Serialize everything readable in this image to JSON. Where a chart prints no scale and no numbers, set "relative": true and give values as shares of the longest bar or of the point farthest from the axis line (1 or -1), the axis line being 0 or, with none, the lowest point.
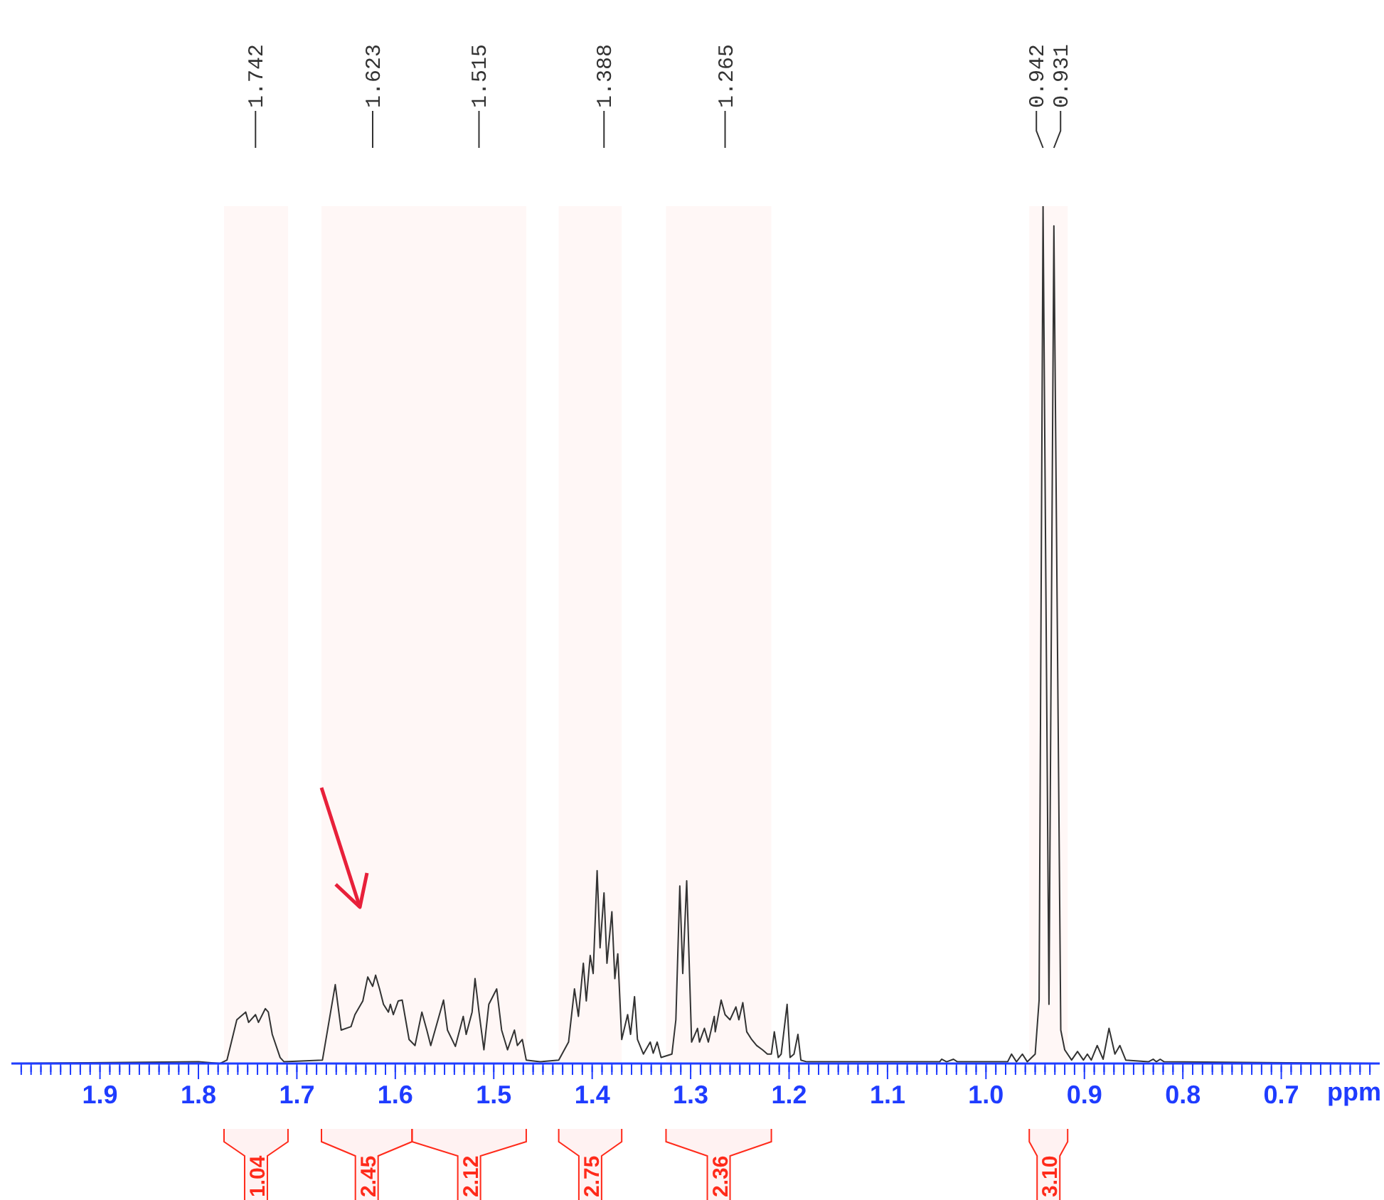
{
  "chart_data": {
    "type": "line",
    "relative": true,
    "xlabel": "ppm",
    "xlim": [
      1.99,
      0.6
    ],
    "xticks": [
      {
        "value": 1.98,
        "label": null
      },
      {
        "value": 1.97,
        "label": null
      },
      {
        "value": 1.96,
        "label": null
      },
      {
        "value": 1.95,
        "label": null
      },
      {
        "value": 1.94,
        "label": null
      },
      {
        "value": 1.93,
        "label": null
      },
      {
        "value": 1.92,
        "label": null
      },
      {
        "value": 1.91,
        "label": null
      },
      1.9,
      {
        "value": 1.89,
        "label": null
      },
      {
        "value": 1.88,
        "label": null
      },
      {
        "value": 1.87,
        "label": null
      },
      {
        "value": 1.86,
        "label": null
      },
      {
        "value": 1.85,
        "label": null
      },
      {
        "value": 1.84,
        "label": null
      },
      {
        "value": 1.83,
        "label": null
      },
      {
        "value": 1.82,
        "label": null
      },
      {
        "value": 1.81,
        "label": null
      },
      1.8,
      {
        "value": 1.79,
        "label": null
      },
      {
        "value": 1.78,
        "label": null
      },
      {
        "value": 1.77,
        "label": null
      },
      {
        "value": 1.76,
        "label": null
      },
      {
        "value": 1.75,
        "label": null
      },
      {
        "value": 1.74,
        "label": null
      },
      {
        "value": 1.73,
        "label": null
      },
      {
        "value": 1.72,
        "label": null
      },
      {
        "value": 1.71,
        "label": null
      },
      1.7,
      {
        "value": 1.69,
        "label": null
      },
      {
        "value": 1.68,
        "label": null
      },
      {
        "value": 1.67,
        "label": null
      },
      {
        "value": 1.66,
        "label": null
      },
      {
        "value": 1.65,
        "label": null
      },
      {
        "value": 1.64,
        "label": null
      },
      {
        "value": 1.63,
        "label": null
      },
      {
        "value": 1.62,
        "label": null
      },
      {
        "value": 1.61,
        "label": null
      },
      1.6,
      {
        "value": 1.59,
        "label": null
      },
      {
        "value": 1.58,
        "label": null
      },
      {
        "value": 1.57,
        "label": null
      },
      {
        "value": 1.56,
        "label": null
      },
      {
        "value": 1.55,
        "label": null
      },
      {
        "value": 1.54,
        "label": null
      },
      {
        "value": 1.53,
        "label": null
      },
      {
        "value": 1.52,
        "label": null
      },
      {
        "value": 1.51,
        "label": null
      },
      1.5,
      {
        "value": 1.49,
        "label": null
      },
      {
        "value": 1.48,
        "label": null
      },
      {
        "value": 1.47,
        "label": null
      },
      {
        "value": 1.46,
        "label": null
      },
      {
        "value": 1.45,
        "label": null
      },
      {
        "value": 1.44,
        "label": null
      },
      {
        "value": 1.43,
        "label": null
      },
      {
        "value": 1.42,
        "label": null
      },
      {
        "value": 1.41,
        "label": null
      },
      1.4,
      {
        "value": 1.39,
        "label": null
      },
      {
        "value": 1.38,
        "label": null
      },
      {
        "value": 1.37,
        "label": null
      },
      {
        "value": 1.36,
        "label": null
      },
      {
        "value": 1.35,
        "label": null
      },
      {
        "value": 1.34,
        "label": null
      },
      {
        "value": 1.33,
        "label": null
      },
      {
        "value": 1.32,
        "label": null
      },
      {
        "value": 1.31,
        "label": null
      },
      1.3,
      {
        "value": 1.29,
        "label": null
      },
      {
        "value": 1.28,
        "label": null
      },
      {
        "value": 1.27,
        "label": null
      },
      {
        "value": 1.26,
        "label": null
      },
      {
        "value": 1.25,
        "label": null
      },
      {
        "value": 1.24,
        "label": null
      },
      {
        "value": 1.23,
        "label": null
      },
      {
        "value": 1.22,
        "label": null
      },
      {
        "value": 1.21,
        "label": null
      },
      1.2,
      {
        "value": 1.19,
        "label": null
      },
      {
        "value": 1.18,
        "label": null
      },
      {
        "value": 1.17,
        "label": null
      },
      {
        "value": 1.16,
        "label": null
      },
      {
        "value": 1.15,
        "label": null
      },
      {
        "value": 1.14,
        "label": null
      },
      {
        "value": 1.13,
        "label": null
      },
      {
        "value": 1.12,
        "label": null
      },
      {
        "value": 1.11,
        "label": null
      },
      1.1,
      {
        "value": 1.09,
        "label": null
      },
      {
        "value": 1.08,
        "label": null
      },
      {
        "value": 1.07,
        "label": null
      },
      {
        "value": 1.06,
        "label": null
      },
      {
        "value": 1.05,
        "label": null
      },
      {
        "value": 1.04,
        "label": null
      },
      {
        "value": 1.03,
        "label": null
      },
      {
        "value": 1.02,
        "label": null
      },
      {
        "value": 1.01,
        "label": null
      },
      {
        "value": 1.0,
        "label": "1.0"
      },
      {
        "value": 0.99,
        "label": null
      },
      {
        "value": 0.98,
        "label": null
      },
      {
        "value": 0.97,
        "label": null
      },
      {
        "value": 0.96,
        "label": null
      },
      {
        "value": 0.95,
        "label": null
      },
      {
        "value": 0.94,
        "label": null
      },
      {
        "value": 0.93,
        "label": null
      },
      {
        "value": 0.92,
        "label": null
      },
      {
        "value": 0.91,
        "label": null
      },
      0.9,
      {
        "value": 0.89,
        "label": null
      },
      {
        "value": 0.88,
        "label": null
      },
      {
        "value": 0.87,
        "label": null
      },
      {
        "value": 0.86,
        "label": null
      },
      {
        "value": 0.85,
        "label": null
      },
      {
        "value": 0.84,
        "label": null
      },
      {
        "value": 0.83,
        "label": null
      },
      {
        "value": 0.82,
        "label": null
      },
      {
        "value": 0.81,
        "label": null
      },
      0.8,
      {
        "value": 0.79,
        "label": null
      },
      {
        "value": 0.78,
        "label": null
      },
      {
        "value": 0.77,
        "label": null
      },
      {
        "value": 0.76,
        "label": null
      },
      {
        "value": 0.75,
        "label": null
      },
      {
        "value": 0.74,
        "label": null
      },
      {
        "value": 0.73,
        "label": null
      },
      {
        "value": 0.72,
        "label": null
      },
      {
        "value": 0.71,
        "label": null
      },
      0.7,
      {
        "value": 0.69,
        "label": null
      },
      {
        "value": 0.68,
        "label": null
      },
      {
        "value": 0.67,
        "label": null
      },
      {
        "value": 0.66,
        "label": null
      },
      {
        "value": 0.65,
        "label": null
      },
      {
        "value": 0.64,
        "label": null
      },
      {
        "value": 0.63,
        "label": null
      },
      {
        "value": 0.62,
        "label": null
      },
      {
        "value": 0.61,
        "label": null
      }
    ],
    "series": [
      {
        "color": "#333333",
        "x": [
          1.99,
          1.8,
          1.778,
          1.771,
          1.761,
          1.752,
          1.749,
          1.742,
          1.739,
          1.732,
          1.729,
          1.725,
          1.717,
          1.713,
          1.674,
          1.661,
          1.655,
          1.645,
          1.641,
          1.633,
          1.628,
          1.623,
          1.62,
          1.616,
          1.612,
          1.607,
          1.605,
          1.602,
          1.597,
          1.593,
          1.586,
          1.58,
          1.573,
          1.568,
          1.564,
          1.551,
          1.547,
          1.539,
          1.531,
          1.528,
          1.522,
          1.519,
          1.515,
          1.51,
          1.505,
          1.497,
          1.492,
          1.486,
          1.479,
          1.476,
          1.471,
          1.467,
          1.453,
          1.434,
          1.424,
          1.418,
          1.414,
          1.409,
          1.406,
          1.402,
          1.399,
          1.395,
          1.392,
          1.388,
          1.385,
          1.38,
          1.377,
          1.374,
          1.37,
          1.364,
          1.361,
          1.357,
          1.354,
          1.348,
          1.341,
          1.338,
          1.334,
          1.33,
          1.319,
          1.315,
          1.311,
          1.308,
          1.304,
          1.299,
          1.293,
          1.291,
          1.286,
          1.282,
          1.276,
          1.275,
          1.269,
          1.265,
          1.26,
          1.254,
          1.251,
          1.247,
          1.243,
          1.238,
          1.233,
          1.227,
          1.222,
          1.218,
          1.215,
          1.211,
          1.208,
          1.202,
          1.199,
          1.195,
          1.191,
          1.188,
          1.182,
          1.047,
          1.045,
          1.04,
          1.033,
          1.029,
          0.978,
          0.974,
          0.969,
          0.963,
          0.958,
          0.95,
          0.946,
          0.942,
          0.936,
          0.931,
          0.924,
          0.92,
          0.913,
          0.907,
          0.901,
          0.897,
          0.893,
          0.887,
          0.881,
          0.875,
          0.869,
          0.864,
          0.858,
          0.835,
          0.83,
          0.827,
          0.823,
          0.819,
          0.6
        ],
        "values": [
          0.0,
          0.002,
          0.0,
          0.004,
          0.051,
          0.06,
          0.048,
          0.057,
          0.048,
          0.064,
          0.06,
          0.034,
          0.007,
          0.002,
          0.004,
          0.092,
          0.039,
          0.043,
          0.057,
          0.073,
          0.101,
          0.09,
          0.103,
          0.087,
          0.069,
          0.06,
          0.069,
          0.057,
          0.073,
          0.074,
          0.028,
          0.021,
          0.06,
          0.039,
          0.021,
          0.074,
          0.039,
          0.02,
          0.055,
          0.034,
          0.06,
          0.099,
          0.06,
          0.016,
          0.069,
          0.087,
          0.039,
          0.016,
          0.039,
          0.021,
          0.028,
          0.004,
          0.002,
          0.004,
          0.025,
          0.087,
          0.055,
          0.117,
          0.073,
          0.126,
          0.105,
          0.225,
          0.135,
          0.199,
          0.117,
          0.177,
          0.099,
          0.128,
          0.028,
          0.057,
          0.034,
          0.078,
          0.028,
          0.011,
          0.025,
          0.012,
          0.025,
          0.007,
          0.011,
          0.051,
          0.207,
          0.105,
          0.213,
          0.025,
          0.041,
          0.025,
          0.041,
          0.025,
          0.055,
          0.037,
          0.074,
          0.057,
          0.051,
          0.066,
          0.051,
          0.071,
          0.037,
          0.028,
          0.021,
          0.016,
          0.011,
          0.011,
          0.037,
          0.007,
          0.011,
          0.069,
          0.007,
          0.011,
          0.034,
          0.004,
          0.002,
          0.002,
          0.005,
          0.002,
          0.005,
          0.002,
          0.002,
          0.011,
          0.002,
          0.011,
          0.002,
          0.011,
          0.074,
          1.0,
          0.069,
          0.977,
          0.039,
          0.016,
          0.004,
          0.014,
          0.004,
          0.011,
          0.004,
          0.021,
          0.005,
          0.041,
          0.011,
          0.021,
          0.004,
          0.002,
          0.005,
          0.002,
          0.005,
          0.002,
          0.0
        ]
      }
    ],
    "annotations": [
      "1.742",
      "1.623",
      "1.515",
      "1.388",
      "1.265",
      "0.942",
      "0.931"
    ],
    "bands": [
      {
        "axis": "x",
        "from": 1.774,
        "to": 1.709,
        "label": "1.04",
        "color": "#ff2a1a"
      },
      {
        "axis": "x",
        "from": 1.675,
        "to": 1.583,
        "label": "2.45",
        "color": "#ff2a1a"
      },
      {
        "axis": "x",
        "from": 1.583,
        "to": 1.467,
        "label": "2.12",
        "color": "#ff2a1a"
      },
      {
        "axis": "x",
        "from": 1.434,
        "to": 1.37,
        "label": "2.75",
        "color": "#ff2a1a"
      },
      {
        "axis": "x",
        "from": 1.325,
        "to": 1.218,
        "label": "2.36",
        "color": "#ff2a1a"
      },
      {
        "axis": "x",
        "from": 0.956,
        "to": 0.917,
        "label": "3.10",
        "color": "#ff2a1a"
      }
    ]
  }
}
